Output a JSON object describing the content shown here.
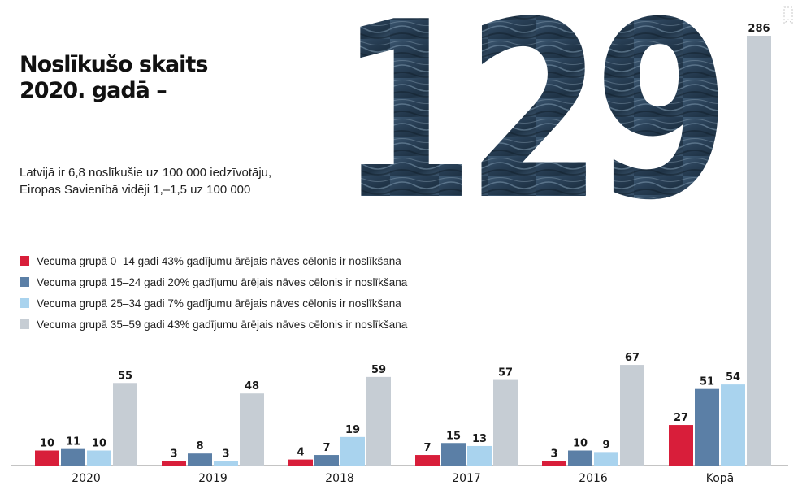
{
  "header": {
    "title_line1": "Noslīkušo skaits",
    "title_line2": "2020. gadā –",
    "big_number": "129",
    "subtitle_line1": "Latvijā ir 6,8 noslīkušie uz 100 000 iedzīvotāju,",
    "subtitle_line2": "Eiropas Savienībā vidēji 1,–1,5 uz 100 000"
  },
  "colors": {
    "red": "#d81e3a",
    "dark_blue": "#5b7fa6",
    "light_blue": "#a9d3ee",
    "gray": "#c6cdd4",
    "number_fill": "#2b4258"
  },
  "icons": {
    "corner": "bookmark-outline-icon"
  },
  "chart_data": {
    "type": "bar",
    "categories": [
      "2020",
      "2019",
      "2018",
      "2017",
      "2016",
      "Kopā"
    ],
    "series": [
      {
        "name": "Vecuma grupā 0–14 gadi 43% gadījumu ārējais nāves cēlonis ir noslīkšana",
        "color": "#d81e3a",
        "values": [
          10,
          3,
          4,
          7,
          3,
          27
        ]
      },
      {
        "name": "Vecuma grupā 15–24 gadi 20% gadījumu ārējais nāves cēlonis ir noslīkšana",
        "color": "#5b7fa6",
        "values": [
          11,
          8,
          7,
          15,
          10,
          51
        ]
      },
      {
        "name": "Vecuma grupā 25–34 gadi 7% gadījumu ārējais nāves cēlonis ir noslīkšana",
        "color": "#a9d3ee",
        "values": [
          10,
          3,
          19,
          13,
          9,
          54
        ]
      },
      {
        "name": "Vecuma grupā 35–59 gadi 43% gadījumu ārējais nāves cēlonis ir noslīkšana",
        "color": "#c6cdd4",
        "values": [
          55,
          48,
          59,
          57,
          67,
          286
        ]
      }
    ],
    "ylim": [
      0,
      286
    ],
    "grid": false,
    "legend_position": "middle-left"
  }
}
